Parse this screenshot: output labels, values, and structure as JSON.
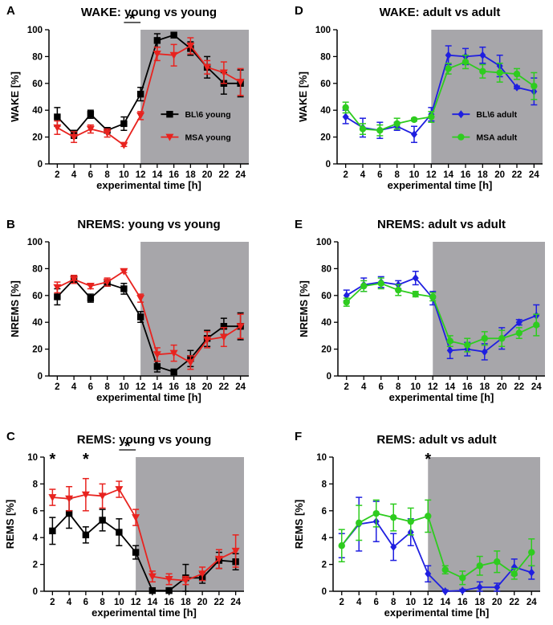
{
  "colors": {
    "black": "#000000",
    "red": "#e8231f",
    "blue": "#1f1fe0",
    "green": "#2ecc1f",
    "shade": "#a7a6aa"
  },
  "chart_data": [
    {
      "panel": "A",
      "type": "line",
      "title": "WAKE: young vs young",
      "xlabel": "experimental time [h]",
      "ylabel": "WAKE [%]",
      "x": [
        2,
        4,
        6,
        8,
        10,
        12,
        14,
        16,
        18,
        20,
        22,
        24
      ],
      "xlim": [
        1,
        25
      ],
      "ylim": [
        0,
        100
      ],
      "yticks": [
        0,
        20,
        40,
        60,
        80,
        100
      ],
      "shade_x": [
        12,
        25
      ],
      "legend_position": "center-right",
      "series": [
        {
          "name": "BL\\6 young",
          "color": "black",
          "marker": "square",
          "values": [
            35,
            22,
            37,
            25,
            30,
            52,
            92,
            96,
            86,
            72,
            60,
            60
          ],
          "errors": [
            7,
            3,
            3,
            2,
            5,
            5,
            5,
            2,
            5,
            8,
            8,
            10
          ]
        },
        {
          "name": "MSA young",
          "color": "red",
          "marker": "triangle-down",
          "values": [
            27,
            20,
            26,
            23,
            14,
            36,
            82,
            81,
            88,
            72,
            68,
            61
          ],
          "errors": [
            5,
            4,
            3,
            3,
            1,
            3,
            5,
            8,
            6,
            5,
            8,
            10
          ]
        }
      ],
      "annotations": [
        {
          "text": "*",
          "x_from": 10,
          "x_to": 12
        }
      ]
    },
    {
      "panel": "B",
      "type": "line",
      "title": "NREMS: young vs young",
      "xlabel": "experimental time [h]",
      "ylabel": "NREMS [%]",
      "x": [
        2,
        4,
        6,
        8,
        10,
        12,
        14,
        16,
        18,
        20,
        22,
        24
      ],
      "xlim": [
        1,
        25
      ],
      "ylim": [
        0,
        100
      ],
      "yticks": [
        0,
        20,
        40,
        60,
        80,
        100
      ],
      "shade_x": [
        12,
        25
      ],
      "series": [
        {
          "name": "BL\\6 young",
          "color": "black",
          "marker": "square",
          "values": [
            59,
            72,
            58,
            69,
            65,
            44,
            7,
            3,
            13,
            28,
            37,
            37
          ],
          "errors": [
            6,
            3,
            3,
            2,
            4,
            4,
            4,
            2,
            6,
            6,
            6,
            10
          ]
        },
        {
          "name": "MSA young",
          "color": "red",
          "marker": "triangle-down",
          "values": [
            66,
            72,
            67,
            70,
            78,
            58,
            16,
            17,
            10,
            27,
            29,
            37
          ],
          "errors": [
            4,
            3,
            2,
            3,
            1,
            3,
            5,
            6,
            5,
            6,
            7,
            9
          ]
        }
      ]
    },
    {
      "panel": "C",
      "type": "line",
      "title": "REMS: young vs young",
      "xlabel": "experimental time [h]",
      "ylabel": "REMS [%]",
      "x": [
        2,
        4,
        6,
        8,
        10,
        12,
        14,
        16,
        18,
        20,
        22,
        24
      ],
      "xlim": [
        1,
        25
      ],
      "ylim": [
        0,
        10
      ],
      "yticks": [
        0,
        2,
        4,
        6,
        8,
        10
      ],
      "shade_x": [
        12,
        25
      ],
      "series": [
        {
          "name": "BL\\6 young",
          "color": "black",
          "marker": "square",
          "values": [
            4.5,
            5.8,
            4.2,
            5.3,
            4.4,
            2.9,
            0.05,
            0.05,
            1.0,
            1.0,
            2.3,
            2.2
          ],
          "errors": [
            1.0,
            1.1,
            0.6,
            0.8,
            1.0,
            0.5,
            0.1,
            0.1,
            1.0,
            0.4,
            0.6,
            0.6
          ]
        },
        {
          "name": "MSA young",
          "color": "red",
          "marker": "triangle-down",
          "values": [
            7.0,
            6.9,
            7.2,
            7.1,
            7.6,
            5.5,
            1.1,
            0.9,
            0.8,
            1.3,
            2.4,
            3.0
          ],
          "errors": [
            0.6,
            0.9,
            1.2,
            0.9,
            0.6,
            0.6,
            0.4,
            0.4,
            0.3,
            0.5,
            0.7,
            1.2
          ]
        }
      ],
      "annotations": [
        {
          "text": "*",
          "x": 2
        },
        {
          "text": "*",
          "x": 6
        },
        {
          "text": "*",
          "x_from": 10,
          "x_to": 12
        }
      ]
    },
    {
      "panel": "D",
      "type": "line",
      "title": "WAKE: adult vs adult",
      "xlabel": "experimental time [h]",
      "ylabel": "WAKE [%]",
      "x": [
        2,
        4,
        6,
        8,
        10,
        12,
        14,
        16,
        18,
        20,
        22,
        24
      ],
      "xlim": [
        1,
        25
      ],
      "ylim": [
        0,
        100
      ],
      "yticks": [
        0,
        20,
        40,
        60,
        80,
        100
      ],
      "shade_x": [
        12,
        25
      ],
      "legend_position": "center-right",
      "series": [
        {
          "name": "BL\\6 adult",
          "color": "blue",
          "marker": "diamond",
          "values": [
            35,
            27,
            25,
            28,
            22,
            37,
            81,
            80,
            81,
            73,
            57,
            54
          ],
          "errors": [
            5,
            7,
            6,
            3,
            6,
            5,
            7,
            6,
            6,
            8,
            1,
            10
          ]
        },
        {
          "name": "MSA adult",
          "color": "green",
          "marker": "circle",
          "values": [
            42,
            26,
            25,
            30,
            33,
            35,
            71,
            76,
            69,
            68,
            67,
            58
          ],
          "errors": [
            4,
            4,
            4,
            4,
            1,
            4,
            4,
            5,
            5,
            7,
            4,
            10
          ]
        }
      ]
    },
    {
      "panel": "E",
      "type": "line",
      "title": "NREMS: adult vs adult",
      "xlabel": "experimental time [h]",
      "ylabel": "NREMS [%]",
      "x": [
        2,
        4,
        6,
        8,
        10,
        12,
        14,
        16,
        18,
        20,
        22,
        24
      ],
      "xlim": [
        1,
        25
      ],
      "ylim": [
        0,
        100
      ],
      "yticks": [
        0,
        20,
        40,
        60,
        80,
        100
      ],
      "shade_x": [
        12,
        25
      ],
      "series": [
        {
          "name": "BL\\6 adult",
          "color": "blue",
          "marker": "diamond",
          "values": [
            60,
            68,
            70,
            68,
            73,
            58,
            19,
            20,
            18,
            28,
            40,
            45
          ],
          "errors": [
            4,
            5,
            4,
            3,
            5,
            5,
            6,
            5,
            6,
            8,
            2,
            8
          ]
        },
        {
          "name": "MSA adult",
          "color": "green",
          "marker": "circle",
          "values": [
            55,
            67,
            69,
            64,
            61,
            59,
            26,
            23,
            28,
            28,
            32,
            38
          ],
          "errors": [
            3,
            4,
            4,
            4,
            2,
            3,
            4,
            5,
            5,
            6,
            4,
            8
          ]
        }
      ]
    },
    {
      "panel": "F",
      "type": "line",
      "title": "REMS: adult vs adult",
      "xlabel": "experimental time [h]",
      "ylabel": "REMS [%]",
      "x": [
        2,
        4,
        6,
        8,
        10,
        12,
        14,
        16,
        18,
        20,
        22,
        24
      ],
      "xlim": [
        1,
        25
      ],
      "ylim": [
        0,
        10
      ],
      "yticks": [
        0,
        2,
        4,
        6,
        8,
        10
      ],
      "shade_x": [
        12,
        25
      ],
      "series": [
        {
          "name": "BL\\6 adult",
          "color": "blue",
          "marker": "diamond",
          "values": [
            3.4,
            5.0,
            5.2,
            3.3,
            4.4,
            1.3,
            0.0,
            0.05,
            0.3,
            0.3,
            1.8,
            1.4
          ],
          "errors": [
            0.9,
            2.0,
            1.5,
            1.0,
            1.0,
            0.6,
            0.1,
            0.1,
            0.4,
            0.3,
            0.6,
            0.5
          ]
        },
        {
          "name": "MSA adult",
          "color": "green",
          "marker": "circle",
          "values": [
            3.4,
            5.1,
            5.8,
            5.5,
            5.2,
            5.6,
            1.6,
            1.0,
            1.9,
            2.2,
            1.3,
            2.9
          ],
          "errors": [
            1.2,
            1.3,
            1.0,
            1.0,
            1.0,
            1.2,
            0.3,
            0.5,
            0.7,
            0.8,
            0.4,
            1.0
          ]
        }
      ],
      "annotations": [
        {
          "text": "*",
          "x": 12
        }
      ]
    }
  ]
}
